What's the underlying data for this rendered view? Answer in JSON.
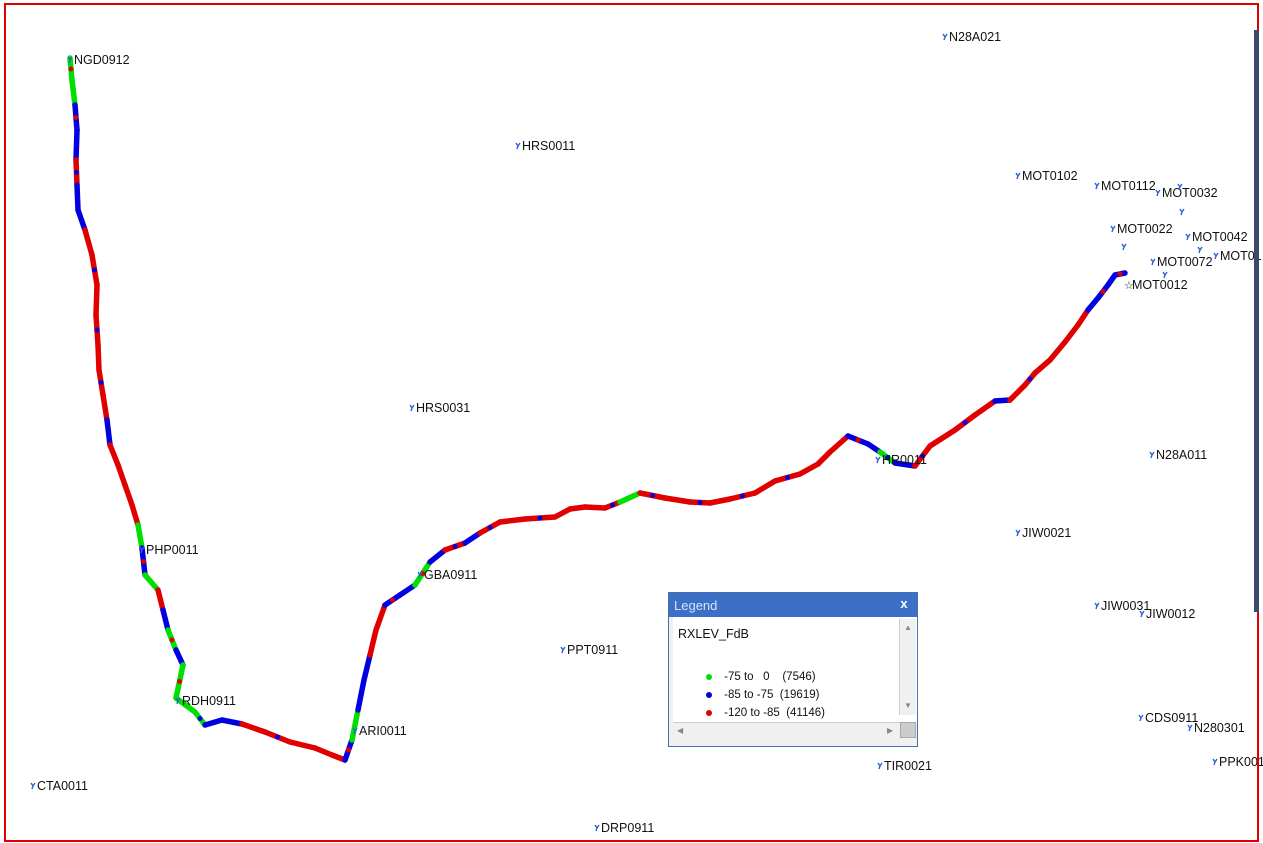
{
  "sites": [
    {
      "id": "NGD0912",
      "label": "NGD0912"
    },
    {
      "id": "N28A021",
      "label": "N28A021"
    },
    {
      "id": "HRS0011",
      "label": "HRS0011"
    },
    {
      "id": "MOT0102",
      "label": "MOT0102"
    },
    {
      "id": "MOT0112",
      "label": "MOT0112"
    },
    {
      "id": "MOT0032",
      "label": "MOT0032"
    },
    {
      "id": "MOT0022",
      "label": "MOT0022"
    },
    {
      "id": "MOT0042",
      "label": "MOT0042"
    },
    {
      "id": "MOT0072",
      "label": "MOT0072"
    },
    {
      "id": "MOT01",
      "label": "MOT01"
    },
    {
      "id": "MOT0012",
      "label": "MOT0012"
    },
    {
      "id": "HRS0031",
      "label": "HRS0031"
    },
    {
      "id": "HR0011",
      "label": "HR0011"
    },
    {
      "id": "N28A011",
      "label": "N28A011"
    },
    {
      "id": "PHP0011",
      "label": "PHP0011"
    },
    {
      "id": "JIW0021",
      "label": "JIW0021"
    },
    {
      "id": "GBA0911",
      "label": "GBA0911"
    },
    {
      "id": "JIW0031",
      "label": "JIW0031"
    },
    {
      "id": "JIW0012",
      "label": "JIW0012"
    },
    {
      "id": "PPT0911",
      "label": "PPT0911"
    },
    {
      "id": "RDH0911",
      "label": "RDH0911"
    },
    {
      "id": "CDS0911",
      "label": "CDS0911"
    },
    {
      "id": "N280301",
      "label": "N280301"
    },
    {
      "id": "ARI0011",
      "label": "ARI0011"
    },
    {
      "id": "TIR0021",
      "label": "TIR0021"
    },
    {
      "id": "PPK001",
      "label": "PPK001"
    },
    {
      "id": "CTA0011",
      "label": "CTA0011"
    },
    {
      "id": "DRP0911",
      "label": "DRP0911"
    }
  ],
  "legend": {
    "title": "Legend",
    "close_label": "x",
    "field": "RXLEV_FdB",
    "items": [
      {
        "range": "-75 to   0",
        "count": "(7546)",
        "color": "#00e000"
      },
      {
        "range": "-85 to -75",
        "count": "(19619)",
        "color": "#0000e0"
      },
      {
        "range": "-120 to -85",
        "count": "(41146)",
        "color": "#e00000"
      }
    ]
  },
  "colors": {
    "strong": "#00e000",
    "medium": "#0000e0",
    "weak": "#e00000",
    "frame": "#e00000"
  }
}
